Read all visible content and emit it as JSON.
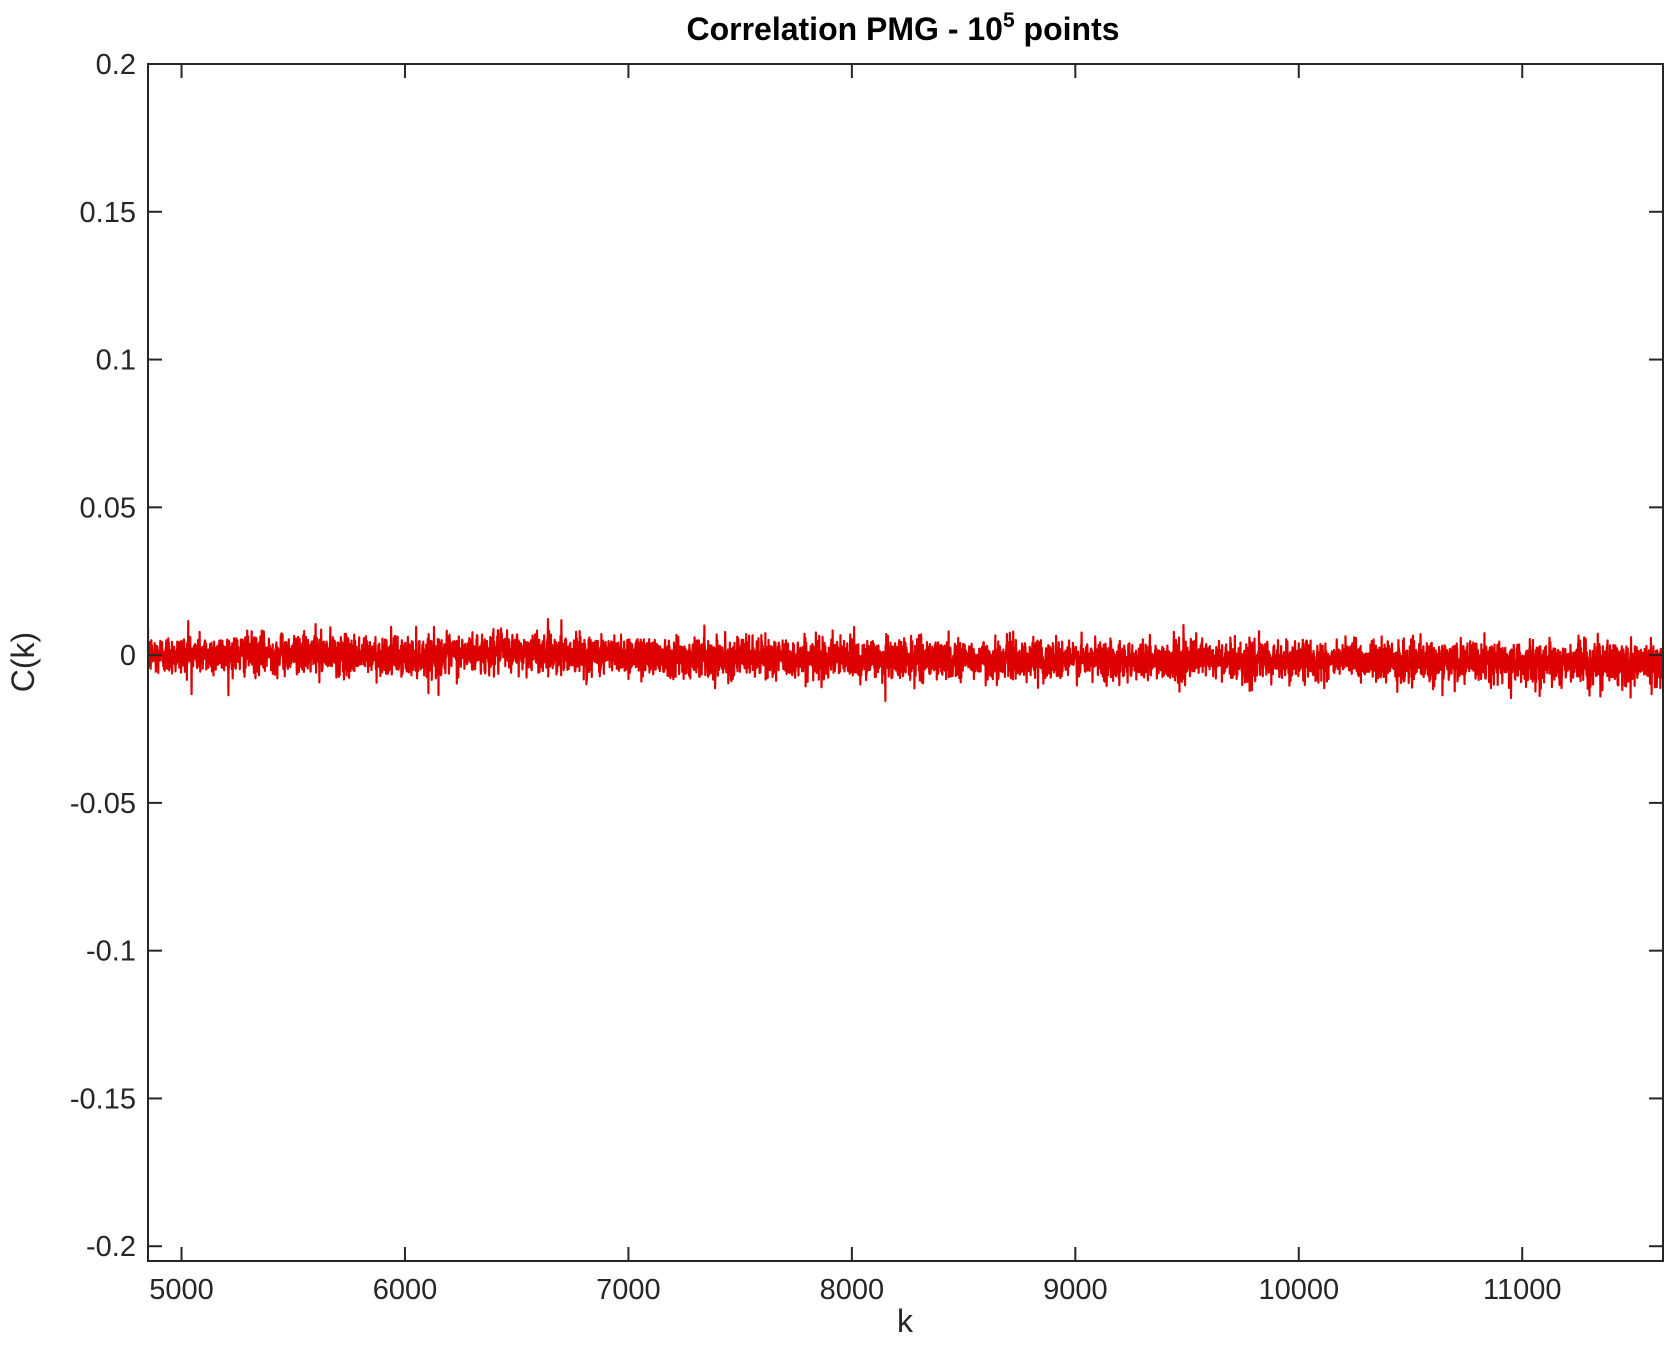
{
  "chart_data": {
    "type": "line",
    "title": {
      "prefix": "Correlation PMG - 10",
      "superscript": "5",
      "suffix": " points"
    },
    "xlabel": "k",
    "ylabel": "C(k)",
    "xlim": [
      4850,
      11630
    ],
    "ylim": [
      -0.205,
      0.2
    ],
    "xticks": [
      5000,
      6000,
      7000,
      8000,
      9000,
      10000,
      11000
    ],
    "xtick_labels": [
      "5000",
      "6000",
      "7000",
      "8000",
      "9000",
      "10000",
      "11000"
    ],
    "yticks": [
      0.2,
      0.15,
      0.1,
      0.05,
      0,
      -0.05,
      -0.1,
      -0.15,
      -0.2
    ],
    "ytick_labels": [
      "0.2",
      "0.15",
      "0.1",
      "0.05",
      "0",
      "-0.05",
      "-0.1",
      "-0.15",
      "-0.2"
    ],
    "grid": false,
    "box": true,
    "series": [
      {
        "color": "#dd0000",
        "x_start": 4850,
        "x_end": 11630,
        "x_step": 1,
        "values_description_note_removed": "",
        "trend": [
          {
            "x": 4850,
            "y": 0.0
          },
          {
            "x": 5500,
            "y": 0.0005
          },
          {
            "x": 6000,
            "y": -0.0005
          },
          {
            "x": 6500,
            "y": 0.0012
          },
          {
            "x": 7000,
            "y": 0.0
          },
          {
            "x": 7500,
            "y": -0.0008
          },
          {
            "x": 8000,
            "y": -0.0012
          },
          {
            "x": 8500,
            "y": -0.0015
          },
          {
            "x": 9000,
            "y": -0.0015
          },
          {
            "x": 9500,
            "y": -0.0018
          },
          {
            "x": 10000,
            "y": -0.002
          },
          {
            "x": 10500,
            "y": -0.0022
          },
          {
            "x": 11000,
            "y": -0.0025
          },
          {
            "x": 11630,
            "y": -0.0028
          }
        ],
        "noise_sd": 0.0033,
        "extremes": [
          {
            "x": 5030,
            "y": 0.0115
          },
          {
            "x": 5600,
            "y": 0.0105
          },
          {
            "x": 6150,
            "y": -0.0135
          },
          {
            "x": 6700,
            "y": 0.0118
          },
          {
            "x": 8010,
            "y": 0.0095
          },
          {
            "x": 8150,
            "y": -0.0155
          },
          {
            "x": 10950,
            "y": -0.0145
          },
          {
            "x": 11350,
            "y": -0.014
          }
        ]
      }
    ]
  }
}
